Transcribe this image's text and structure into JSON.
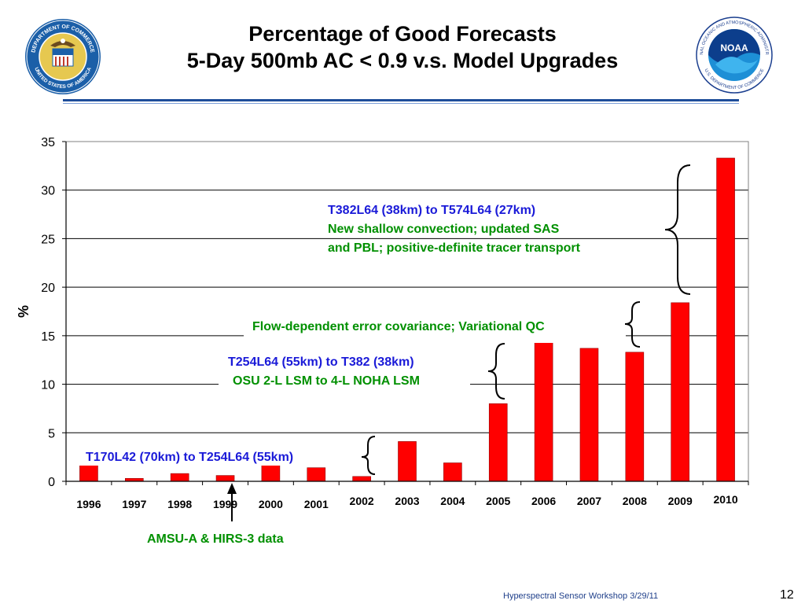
{
  "header": {
    "title_line1": "Percentage of Good Forecasts",
    "title_line2": "5-Day 500mb AC < 0.9 v.s. Model Upgrades"
  },
  "logos": {
    "left": "DEPARTMENT OF COMMERCE",
    "left_bottom": "UNITED STATES OF AMERICA",
    "right": "NOAA",
    "right_ring": "NATIONAL OCEANIC AND ATMOSPHERIC ADMINISTRATION",
    "right_ring_bottom": "U.S. DEPARTMENT OF COMMERCE"
  },
  "chart_data": {
    "type": "bar",
    "title": "",
    "xlabel": "",
    "ylabel": "%",
    "ylim": [
      0,
      35
    ],
    "yticks": [
      0,
      5,
      10,
      15,
      20,
      25,
      30,
      35
    ],
    "grid": true,
    "legend": "none",
    "bar_color": "#ff0000",
    "categories": [
      "1996",
      "1997",
      "1998",
      "1999",
      "2000",
      "2001",
      "2002",
      "2003",
      "2004",
      "2005",
      "2006",
      "2007",
      "2008",
      "2009",
      "2010"
    ],
    "values": [
      1.7,
      0.3,
      0.8,
      0.6,
      1.7,
      1.4,
      0.5,
      4.1,
      1.9,
      8.0,
      14.6,
      13.7,
      13.3,
      18.4,
      33.3
    ],
    "annotations": [
      {
        "text": "T170L42 (70km) to T254L64  (55km)",
        "color": "#1a1ad8"
      },
      {
        "text": "AMSU-A & HIRS-3 data",
        "color": "#009000"
      },
      {
        "text": "T254L64 (55km) to T382 (38km)",
        "color": "#1a1ad8"
      },
      {
        "text": "OSU 2-L LSM to 4-L NOHA LSM",
        "color": "#009000"
      },
      {
        "text": "Flow-dependent error covariance; Variational QC",
        "color": "#009000"
      },
      {
        "text": "T382L64 (38km) to T574L64 (27km)",
        "color": "#1a1ad8"
      },
      {
        "text": "New shallow convection; updated SAS",
        "color": "#009000"
      },
      {
        "text": "and PBL; positive-definite tracer transport",
        "color": "#009000"
      }
    ]
  },
  "footer": {
    "event": "Hyperspectral Sensor Workshop 3/29/11",
    "page": "12"
  }
}
